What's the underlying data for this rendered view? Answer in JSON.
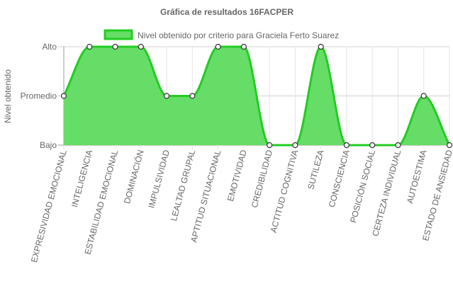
{
  "chart_data": {
    "type": "area",
    "title": "Gráfica de resultados 16FACPER",
    "ylabel": "Nivel obtenido",
    "xlabel": "",
    "y_levels": [
      "Bajo",
      "Promedio",
      "Alto"
    ],
    "ylim": [
      0,
      2
    ],
    "grid": true,
    "legend_position": "top",
    "categories": [
      "EXPRESIVIDAD EMOCIONAL",
      "INTELIGENCIA",
      "ESTABILIDAD EMOCIONAL",
      "DOMINACIÓN",
      "IMPULSIVIDAD",
      "LEALTAD GRUPAL",
      "APTITUD SITUACIONAL",
      "EMOTIVIDAD",
      "CREDIBILIDAD",
      "ACTITUD COGNITIVA",
      "SUTILEZA",
      "CONSCIENCIA",
      "POSICIÓN SOCIAL",
      "CERTEZA INDIVIDUAL",
      "AUTOESTIMA",
      "ESTADO DE ANSIEDAD"
    ],
    "series": [
      {
        "name": "Nivel obtenido por criterio para Graciela Ferto Suarez",
        "values": [
          1,
          2,
          2,
          2,
          1,
          1,
          2,
          2,
          0,
          0,
          2,
          0,
          0,
          0,
          1,
          0
        ],
        "color": "#22cc22",
        "fill": "#66dd66"
      }
    ]
  }
}
